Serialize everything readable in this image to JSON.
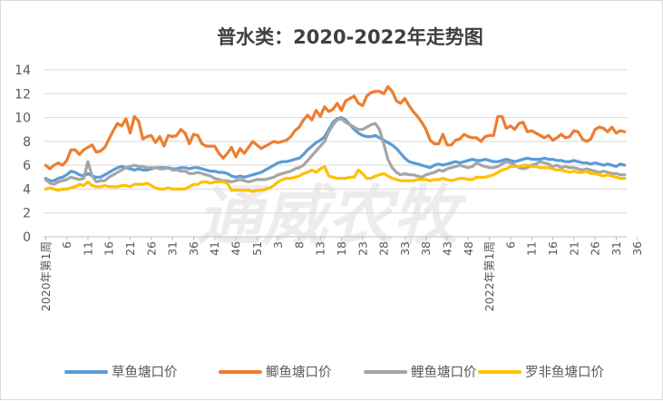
{
  "chart_data": {
    "type": "line",
    "title": "普水类：2020-2022年走势图",
    "watermark": "通威农牧",
    "y_ticks": [
      "0",
      "2",
      "4",
      "6",
      "8",
      "10",
      "12",
      "14"
    ],
    "ylim": [
      0,
      14
    ],
    "grid": "horizontal",
    "legend_position": "bottom",
    "x_tick_labels": [
      "2020年第1周",
      "6",
      "11",
      "16",
      "21",
      "26",
      "31",
      "36",
      "41",
      "46",
      "51",
      "3",
      "8",
      "13",
      "18",
      "23",
      "28",
      "33",
      "38",
      "43",
      "48",
      "2022年第1周",
      "6",
      "11",
      "16",
      "21",
      "26",
      "31",
      "36"
    ],
    "x_count": 138,
    "series": [
      {
        "name": "草鱼塘口价",
        "color": "#5b9bd5",
        "values": [
          4.9,
          4.7,
          4.7,
          4.9,
          5.0,
          5.2,
          5.5,
          5.4,
          5.2,
          5.1,
          5.3,
          5.1,
          5.0,
          5.0,
          5.2,
          5.4,
          5.6,
          5.8,
          5.9,
          5.8,
          5.7,
          5.6,
          5.7,
          5.6,
          5.6,
          5.7,
          5.8,
          5.8,
          5.8,
          5.8,
          5.7,
          5.7,
          5.8,
          5.8,
          5.7,
          5.8,
          5.8,
          5.7,
          5.6,
          5.5,
          5.5,
          5.4,
          5.4,
          5.3,
          5.1,
          5.0,
          5.1,
          5.0,
          5.1,
          5.2,
          5.3,
          5.4,
          5.6,
          5.8,
          6.0,
          6.2,
          6.3,
          6.3,
          6.4,
          6.5,
          6.6,
          6.9,
          7.3,
          7.6,
          7.9,
          8.1,
          8.4,
          9.0,
          9.6,
          9.9,
          10.0,
          9.8,
          9.4,
          9.0,
          8.7,
          8.5,
          8.4,
          8.4,
          8.5,
          8.3,
          8.1,
          7.9,
          7.7,
          7.4,
          7.0,
          6.6,
          6.3,
          6.2,
          6.1,
          6.0,
          5.9,
          5.8,
          6.0,
          6.1,
          6.0,
          6.1,
          6.2,
          6.3,
          6.2,
          6.3,
          6.4,
          6.5,
          6.4,
          6.4,
          6.5,
          6.4,
          6.3,
          6.3,
          6.4,
          6.5,
          6.4,
          6.3,
          6.4,
          6.5,
          6.6,
          6.5,
          6.5,
          6.5,
          6.6,
          6.5,
          6.5,
          6.4,
          6.4,
          6.3,
          6.3,
          6.4,
          6.3,
          6.2,
          6.2,
          6.1,
          6.2,
          6.1,
          6.0,
          6.1,
          6.0,
          5.9,
          6.1,
          6.0
        ]
      },
      {
        "name": "鲫鱼塘口价",
        "color": "#ed7d31",
        "values": [
          6.0,
          5.7,
          6.0,
          6.2,
          6.0,
          6.4,
          7.3,
          7.3,
          6.9,
          7.3,
          7.5,
          7.7,
          7.1,
          7.2,
          7.5,
          8.2,
          8.9,
          9.5,
          9.3,
          9.9,
          8.7,
          10.1,
          9.7,
          8.2,
          8.4,
          8.5,
          7.9,
          8.4,
          7.6,
          8.5,
          8.4,
          8.5,
          9.0,
          8.7,
          7.8,
          8.6,
          8.5,
          7.8,
          7.6,
          7.6,
          7.6,
          7.0,
          6.6,
          7.0,
          7.5,
          6.7,
          7.4,
          7.0,
          7.5,
          8.0,
          7.7,
          7.4,
          7.6,
          7.8,
          8.0,
          7.9,
          8.0,
          8.1,
          8.4,
          8.9,
          9.2,
          9.8,
          10.2,
          9.8,
          10.6,
          10.1,
          10.9,
          10.5,
          10.7,
          11.2,
          10.6,
          11.4,
          11.6,
          11.8,
          11.2,
          11.0,
          11.8,
          12.1,
          12.2,
          12.2,
          12.0,
          12.6,
          12.2,
          11.4,
          11.2,
          11.6,
          11.0,
          10.5,
          10.1,
          9.6,
          9.0,
          8.1,
          7.8,
          7.8,
          8.6,
          7.7,
          7.7,
          8.1,
          8.2,
          8.6,
          8.4,
          8.3,
          8.3,
          8.0,
          8.4,
          8.5,
          8.5,
          10.1,
          10.1,
          9.1,
          9.3,
          9.0,
          9.5,
          9.6,
          8.8,
          8.9,
          8.7,
          8.5,
          8.3,
          8.5,
          8.1,
          8.3,
          8.6,
          8.3,
          8.4,
          8.9,
          8.8,
          8.2,
          8.0,
          8.2,
          9.0,
          9.2,
          9.1,
          8.8,
          9.2,
          8.7,
          8.9,
          8.8
        ]
      },
      {
        "name": "鲤鱼塘口价",
        "color": "#a5a5a5",
        "values": [
          4.8,
          4.5,
          4.4,
          4.6,
          4.7,
          4.8,
          5.0,
          4.9,
          4.8,
          4.9,
          6.3,
          5.1,
          4.6,
          4.7,
          4.7,
          5.0,
          5.2,
          5.4,
          5.6,
          5.8,
          5.9,
          6.0,
          5.9,
          5.9,
          5.8,
          5.8,
          5.8,
          5.7,
          5.7,
          5.8,
          5.6,
          5.6,
          5.5,
          5.5,
          5.3,
          5.3,
          5.4,
          5.3,
          5.2,
          5.1,
          4.9,
          4.8,
          4.7,
          4.7,
          4.6,
          4.7,
          4.8,
          4.7,
          4.6,
          4.7,
          4.8,
          4.8,
          4.8,
          4.9,
          5.0,
          5.2,
          5.3,
          5.4,
          5.5,
          5.7,
          5.8,
          6.0,
          6.4,
          6.8,
          7.2,
          7.6,
          8.0,
          8.8,
          9.4,
          9.8,
          9.9,
          9.6,
          9.4,
          9.2,
          9.0,
          9.0,
          9.2,
          9.4,
          9.5,
          9.0,
          7.8,
          6.5,
          5.8,
          5.4,
          5.2,
          5.3,
          5.2,
          5.2,
          5.1,
          5.0,
          5.2,
          5.3,
          5.4,
          5.6,
          5.5,
          5.7,
          5.8,
          5.9,
          6.0,
          5.9,
          5.8,
          5.9,
          6.2,
          6.0,
          5.9,
          5.8,
          5.8,
          5.9,
          6.1,
          6.3,
          6.2,
          6.0,
          5.8,
          5.7,
          5.8,
          6.0,
          6.1,
          6.3,
          6.2,
          6.1,
          5.9,
          6.0,
          5.8,
          5.9,
          5.8,
          5.8,
          5.7,
          5.6,
          5.7,
          5.6,
          5.5,
          5.4,
          5.5,
          5.4,
          5.3,
          5.3,
          5.2,
          5.2
        ]
      },
      {
        "name": "罗非鱼塘口价",
        "color": "#ffc000",
        "values": [
          4.0,
          4.1,
          4.0,
          3.9,
          4.0,
          4.0,
          4.1,
          4.2,
          4.4,
          4.3,
          4.6,
          4.3,
          4.2,
          4.2,
          4.3,
          4.2,
          4.2,
          4.2,
          4.3,
          4.3,
          4.2,
          4.4,
          4.4,
          4.4,
          4.5,
          4.3,
          4.1,
          4.0,
          4.0,
          4.1,
          4.0,
          4.0,
          4.0,
          4.0,
          4.2,
          4.4,
          4.4,
          4.6,
          4.6,
          4.5,
          4.6,
          4.6,
          4.6,
          4.5,
          3.9,
          3.9,
          3.9,
          3.9,
          3.9,
          3.8,
          3.9,
          3.9,
          4.0,
          4.1,
          4.3,
          4.6,
          4.8,
          4.9,
          4.9,
          5.0,
          5.1,
          5.3,
          5.4,
          5.6,
          5.4,
          5.7,
          5.9,
          5.1,
          5.0,
          4.9,
          4.9,
          4.9,
          5.0,
          5.0,
          5.6,
          5.3,
          4.9,
          4.9,
          5.1,
          5.2,
          5.3,
          5.1,
          4.9,
          4.8,
          4.7,
          4.7,
          4.7,
          4.7,
          4.8,
          4.8,
          4.8,
          4.7,
          4.8,
          4.8,
          4.9,
          4.8,
          4.7,
          4.8,
          4.9,
          4.9,
          4.8,
          4.8,
          5.0,
          5.0,
          5.0,
          5.1,
          5.2,
          5.4,
          5.6,
          5.7,
          5.9,
          5.9,
          5.9,
          6.0,
          6.0,
          5.9,
          5.9,
          5.8,
          5.8,
          5.8,
          5.7,
          5.6,
          5.6,
          5.5,
          5.4,
          5.5,
          5.4,
          5.4,
          5.5,
          5.3,
          5.3,
          5.2,
          5.1,
          5.2,
          5.1,
          5.0,
          4.9,
          4.9
        ]
      }
    ]
  }
}
